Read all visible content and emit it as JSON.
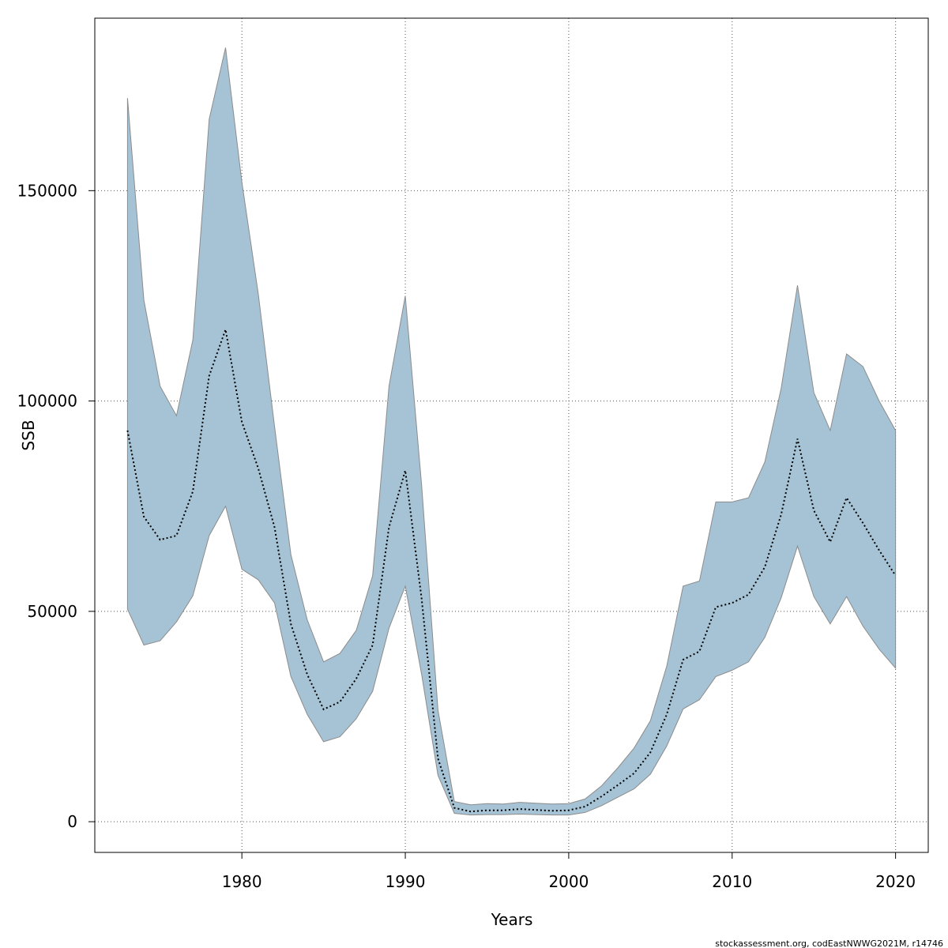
{
  "chart_data": {
    "type": "area",
    "xlabel": "Years",
    "ylabel": "SSB",
    "xlim": [
      1971,
      2022
    ],
    "ylim": [
      -7300,
      191000
    ],
    "x_ticks": [
      1980,
      1990,
      2000,
      2010,
      2020
    ],
    "y_ticks": [
      0,
      50000,
      100000,
      150000
    ],
    "y_tick_labels": [
      "0",
      "50000",
      "100000",
      "150000"
    ],
    "grid": true,
    "band_color": "#a5c3d5",
    "band_edge_color": "#8c8c8c",
    "line_color": "#000000",
    "x": [
      1973,
      1974,
      1975,
      1976,
      1977,
      1978,
      1979,
      1980,
      1981,
      1982,
      1983,
      1984,
      1985,
      1986,
      1987,
      1988,
      1989,
      1990,
      1991,
      1992,
      1993,
      1994,
      1995,
      1996,
      1997,
      1998,
      1999,
      2000,
      2001,
      2002,
      2003,
      2004,
      2005,
      2006,
      2007,
      2008,
      2009,
      2010,
      2011,
      2012,
      2013,
      2014,
      2015,
      2016,
      2017,
      2018,
      2019,
      2020
    ],
    "series": [
      {
        "role": "estimate",
        "style": "dotted",
        "values": [
          93000,
          72500,
          67000,
          68000,
          78500,
          106000,
          117000,
          95000,
          84000,
          70000,
          47000,
          35000,
          26700,
          28500,
          34000,
          42000,
          70000,
          83500,
          53000,
          15000,
          3300,
          2400,
          2700,
          2700,
          3000,
          2800,
          2600,
          2700,
          3600,
          6000,
          8700,
          11500,
          16500,
          25500,
          38500,
          40500,
          51000,
          52000,
          54000,
          60500,
          73000,
          91000,
          74000,
          66500,
          77000,
          71000,
          64500,
          58500
        ]
      },
      {
        "role": "upper-bound",
        "values": [
          172000,
          124000,
          103500,
          96500,
          114500,
          167000,
          184000,
          152000,
          125500,
          94000,
          63500,
          48000,
          38000,
          40000,
          45500,
          58500,
          103500,
          125000,
          80000,
          26500,
          4800,
          4000,
          4300,
          4200,
          4600,
          4400,
          4200,
          4300,
          5400,
          8500,
          12800,
          17500,
          24000,
          37000,
          56000,
          57200,
          76000,
          76000,
          77000,
          85500,
          103000,
          127500,
          102000,
          93000,
          111200,
          108200,
          100000,
          93000
        ]
      },
      {
        "role": "lower-bound",
        "values": [
          50500,
          42000,
          43000,
          47500,
          53700,
          68000,
          75000,
          60000,
          57500,
          52000,
          34500,
          25500,
          19000,
          20200,
          24500,
          31000,
          46000,
          56000,
          35000,
          11000,
          2000,
          1600,
          1700,
          1700,
          1800,
          1700,
          1600,
          1600,
          2200,
          3800,
          5800,
          7800,
          11300,
          18000,
          26800,
          29000,
          34500,
          36000,
          38000,
          43800,
          53200,
          65500,
          53500,
          47000,
          53500,
          46500,
          41000,
          36500
        ]
      }
    ]
  },
  "footer": "stockassessment.org, codEastNWWG2021M, r14746"
}
